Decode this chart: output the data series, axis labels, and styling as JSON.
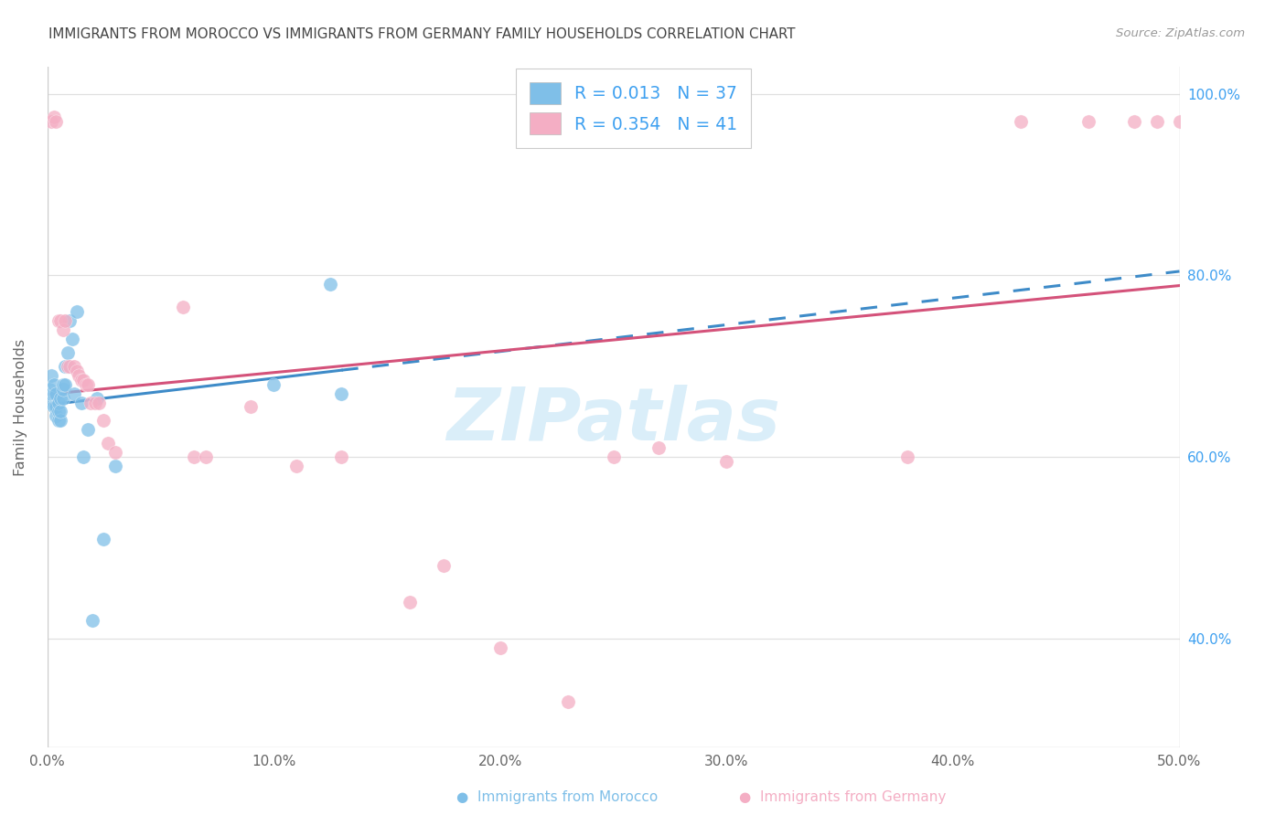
{
  "title": "IMMIGRANTS FROM MOROCCO VS IMMIGRANTS FROM GERMANY FAMILY HOUSEHOLDS CORRELATION CHART",
  "source": "Source: ZipAtlas.com",
  "ylabel": "Family Households",
  "xlim": [
    0.0,
    0.5
  ],
  "ylim": [
    0.28,
    1.03
  ],
  "morocco_R": 0.013,
  "morocco_N": 37,
  "germany_R": 0.354,
  "germany_N": 41,
  "morocco_color": "#7fbfe8",
  "germany_color": "#f4aec4",
  "morocco_line_color": "#3e8bc8",
  "germany_line_color": "#d4527a",
  "right_tick_color": "#3ea0f0",
  "watermark": "ZIPatlas",
  "watermark_color": "#daeef9",
  "x_ticks": [
    0.0,
    0.1,
    0.2,
    0.3,
    0.4,
    0.5
  ],
  "x_tick_labels": [
    "0.0%",
    "10.0%",
    "20.0%",
    "30.0%",
    "40.0%",
    "50.0%"
  ],
  "y_ticks": [
    0.4,
    0.6,
    0.8,
    1.0
  ],
  "y_tick_labels_right": [
    "40.0%",
    "60.0%",
    "80.0%",
    "100.0%"
  ],
  "morocco_x": [
    0.001,
    0.001,
    0.002,
    0.002,
    0.003,
    0.003,
    0.003,
    0.004,
    0.004,
    0.004,
    0.005,
    0.005,
    0.005,
    0.006,
    0.006,
    0.006,
    0.007,
    0.007,
    0.007,
    0.008,
    0.008,
    0.009,
    0.009,
    0.01,
    0.011,
    0.012,
    0.013,
    0.015,
    0.016,
    0.018,
    0.02,
    0.022,
    0.025,
    0.03,
    0.1,
    0.125,
    0.13
  ],
  "morocco_y": [
    0.675,
    0.66,
    0.69,
    0.67,
    0.655,
    0.67,
    0.68,
    0.645,
    0.655,
    0.67,
    0.64,
    0.65,
    0.66,
    0.64,
    0.65,
    0.665,
    0.665,
    0.675,
    0.68,
    0.68,
    0.7,
    0.7,
    0.715,
    0.75,
    0.73,
    0.67,
    0.76,
    0.66,
    0.6,
    0.63,
    0.42,
    0.665,
    0.51,
    0.59,
    0.68,
    0.79,
    0.67
  ],
  "germany_x": [
    0.002,
    0.003,
    0.004,
    0.005,
    0.006,
    0.007,
    0.008,
    0.009,
    0.01,
    0.012,
    0.013,
    0.014,
    0.015,
    0.016,
    0.017,
    0.018,
    0.019,
    0.021,
    0.023,
    0.025,
    0.027,
    0.03,
    0.06,
    0.065,
    0.07,
    0.09,
    0.11,
    0.13,
    0.16,
    0.175,
    0.2,
    0.23,
    0.25,
    0.27,
    0.3,
    0.38,
    0.43,
    0.46,
    0.48,
    0.49,
    0.5
  ],
  "germany_y": [
    0.97,
    0.975,
    0.97,
    0.75,
    0.75,
    0.74,
    0.75,
    0.7,
    0.7,
    0.7,
    0.695,
    0.69,
    0.685,
    0.685,
    0.68,
    0.68,
    0.66,
    0.66,
    0.66,
    0.64,
    0.615,
    0.605,
    0.765,
    0.6,
    0.6,
    0.655,
    0.59,
    0.6,
    0.44,
    0.48,
    0.39,
    0.33,
    0.6,
    0.61,
    0.595,
    0.6,
    0.97,
    0.97,
    0.97,
    0.97,
    0.97
  ]
}
